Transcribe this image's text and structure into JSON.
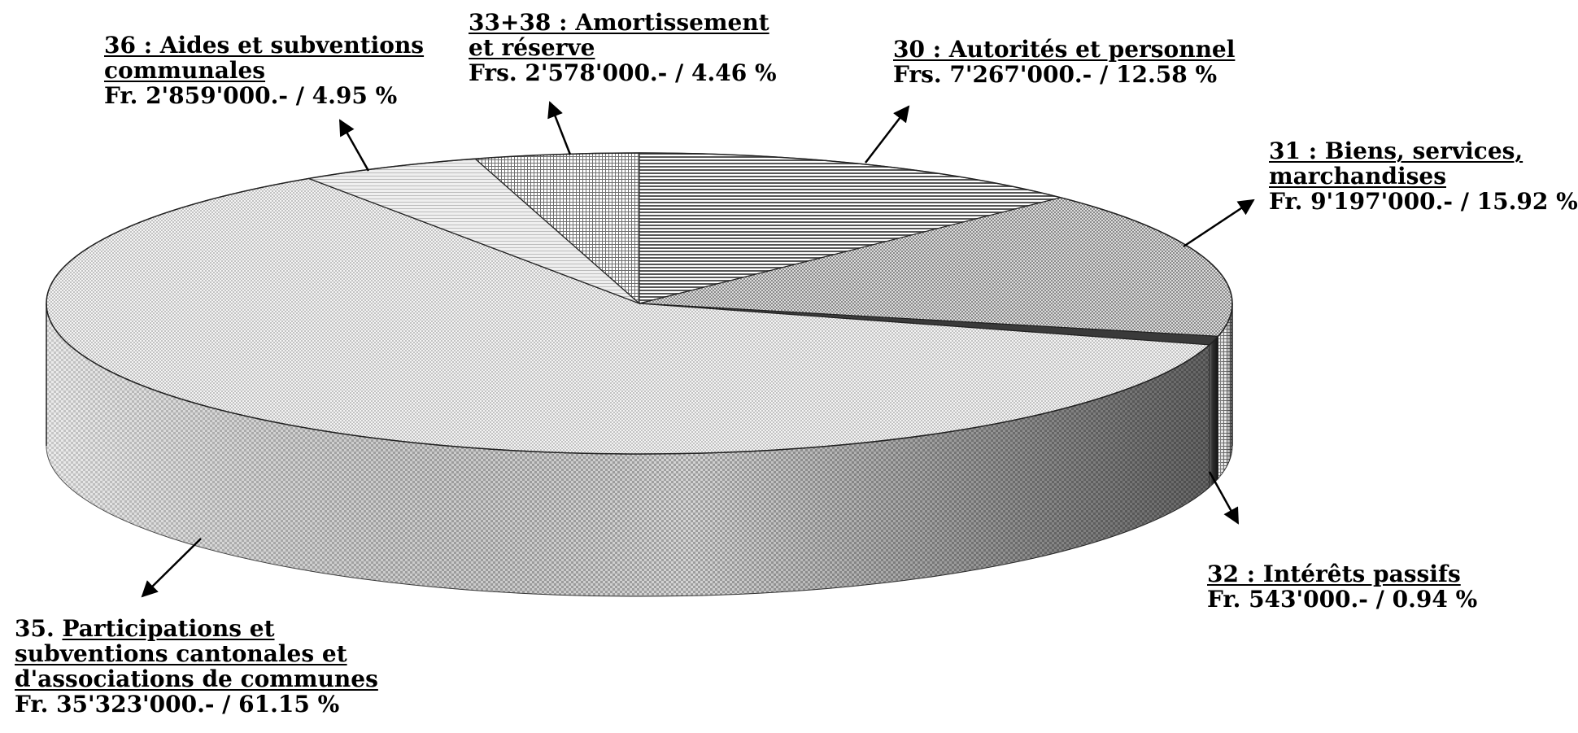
{
  "chart_data": {
    "type": "pie",
    "style": "3d-exploded-none",
    "slices": [
      {
        "id": "s30",
        "code": "30 : Autorités et personnel",
        "amount": "Frs.  7'267'000.- / 12.58 %",
        "value": 7267000,
        "percent": 12.58
      },
      {
        "id": "s31",
        "code_line1": "31 : Biens, services,",
        "code_line2": "marchandises",
        "amount": "Fr. 9'197'000.- / 15.92 %",
        "value": 9197000,
        "percent": 15.92
      },
      {
        "id": "s32",
        "code": "32 : Intérêts passifs",
        "amount": "Fr. 543'000.- / 0.94 %",
        "value": 543000,
        "percent": 0.94
      },
      {
        "id": "s35",
        "prefix": "35.",
        "code_line1": "Participations et",
        "code_line2": "subventions cantonales et",
        "code_line3": "d'associations de communes",
        "amount": "Fr.  35'323'000.- / 61.15 %",
        "value": 35323000,
        "percent": 61.15
      },
      {
        "id": "s36",
        "code_line1": "36 : Aides et subventions",
        "code_line2": "communales",
        "amount": "Fr. 2'859'000.- / 4.95 %",
        "value": 2859000,
        "percent": 4.95
      },
      {
        "id": "s3338",
        "code_line1": "33+38 : Amortissement",
        "code_line2": "et réserve",
        "amount": "Frs. 2'578'000.- / 4.46 %",
        "value": 2578000,
        "percent": 4.46
      }
    ]
  }
}
